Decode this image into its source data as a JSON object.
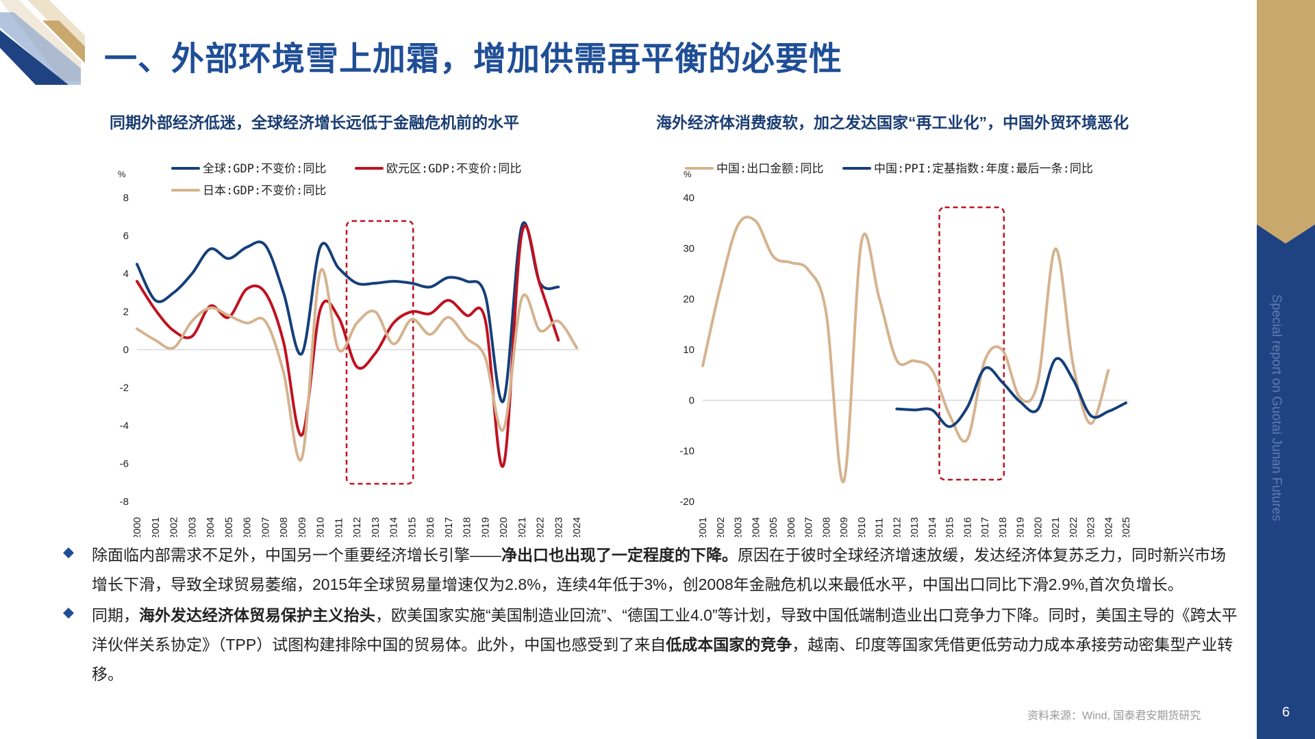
{
  "header": {
    "title": "一、外部环境雪上加霜，增加供需再平衡的必要性"
  },
  "sidebar": {
    "text": "Special report on Guotai Junan Futures",
    "page_number": "6"
  },
  "colors": {
    "navy": "#1f4382",
    "gold": "#c9a86e",
    "red": "#c0111f",
    "tan": "#d5b38f",
    "title_blue": "#1f4e96"
  },
  "left_panel": {
    "subtitle": "同期外部经济低迷，全球经济增长远低于金融危机前的水平"
  },
  "right_panel": {
    "subtitle": "海外经济体消费疲软，加之发达国家“再工业化”，中国外贸环境恶化"
  },
  "chart_data": [
    {
      "type": "line",
      "unit_label": "%",
      "x": [
        "2000",
        "2001",
        "2002",
        "2003",
        "2004",
        "2005",
        "2006",
        "2007",
        "2008",
        "2009",
        "2010",
        "2011",
        "2012",
        "2013",
        "2014",
        "2015",
        "2016",
        "2017",
        "2018",
        "2019",
        "2020",
        "2021",
        "2022",
        "2023",
        "2024"
      ],
      "ylim": [
        -8,
        8
      ],
      "yticks": [
        -8,
        -6,
        -4,
        -2,
        0,
        2,
        4,
        6,
        8
      ],
      "grid": false,
      "legend_position": "top",
      "highlight_box": [
        "2012",
        "2015"
      ],
      "series": [
        {
          "name": "全球:GDP:不变价:同比",
          "color": "#153f7a",
          "values": [
            4.5,
            2.6,
            3.0,
            4.0,
            5.3,
            4.8,
            5.4,
            5.5,
            3.0,
            -0.2,
            5.4,
            4.3,
            3.5,
            3.5,
            3.6,
            3.5,
            3.3,
            3.8,
            3.6,
            2.9,
            -2.7,
            6.5,
            3.5,
            3.3,
            null
          ]
        },
        {
          "name": "欧元区:GDP:不变价:同比",
          "color": "#c0111f",
          "values": [
            3.6,
            2.1,
            1.0,
            0.7,
            2.3,
            1.7,
            3.2,
            3.0,
            0.4,
            -4.5,
            2.1,
            1.7,
            -0.9,
            -0.2,
            1.4,
            2.0,
            1.9,
            2.6,
            1.8,
            1.6,
            -6.1,
            6.1,
            3.4,
            0.5,
            null
          ]
        },
        {
          "name": "日本:GDP:不变价:同比",
          "color": "#d5b38f",
          "values": [
            1.1,
            0.5,
            0.1,
            1.5,
            2.2,
            1.8,
            1.4,
            1.5,
            -1.2,
            -5.7,
            4.1,
            0.0,
            1.4,
            2.0,
            0.3,
            1.6,
            0.8,
            1.7,
            0.6,
            -0.4,
            -4.2,
            2.7,
            1.0,
            1.5,
            0.1
          ]
        }
      ]
    },
    {
      "type": "line",
      "unit_label": "%",
      "x": [
        "2001",
        "2002",
        "2003",
        "2004",
        "2005",
        "2006",
        "2007",
        "2008",
        "2009",
        "2010",
        "2011",
        "2012",
        "2013",
        "2014",
        "2015",
        "2016",
        "2017",
        "2018",
        "2019",
        "2020",
        "2021",
        "2022",
        "2023",
        "2024",
        "2025"
      ],
      "ylim": [
        -20,
        40
      ],
      "yticks": [
        -20,
        -10,
        0,
        10,
        20,
        30,
        40
      ],
      "grid": false,
      "legend_position": "top",
      "highlight_box": [
        "2015",
        "2018"
      ],
      "series": [
        {
          "name": "中国:出口金额:同比",
          "color": "#d5b38f",
          "values": [
            6.8,
            22.4,
            34.6,
            35.4,
            28.4,
            27.2,
            25.7,
            17.2,
            -16.0,
            31.3,
            20.3,
            7.9,
            7.8,
            6.0,
            -2.9,
            -7.7,
            7.9,
            9.9,
            0.5,
            3.6,
            29.9,
            7.0,
            -4.6,
            5.9,
            null
          ]
        },
        {
          "name": "中国:PPI:定基指数:年度:最后一条:同比",
          "color": "#153f7a",
          "values": [
            null,
            null,
            null,
            null,
            null,
            null,
            null,
            null,
            null,
            null,
            null,
            -1.7,
            -1.9,
            -1.9,
            -5.2,
            -1.4,
            6.3,
            3.5,
            -0.3,
            -1.8,
            8.1,
            4.1,
            -3.0,
            -2.2,
            -0.5
          ]
        }
      ]
    }
  ],
  "bullets": [
    {
      "parts": [
        {
          "text": "除面临内部需求不足外，中国另一个重要经济增长引擎——",
          "bold": false
        },
        {
          "text": "净出口也出现了一定程度的下降。",
          "bold": true
        },
        {
          "text": "原因在于彼时全球经济增速放缓，发达经济体复苏乏力，同时新兴市场增长下滑，导致全球贸易萎缩，2015年全球贸易量增速仅为2.8%，连续4年低于3%，创2008年金融危机以来最低水平，中国出口同比下滑2.9%,首次负增长。",
          "bold": false
        }
      ]
    },
    {
      "parts": [
        {
          "text": "同期，",
          "bold": false
        },
        {
          "text": "海外发达经济体贸易保护主义抬头",
          "bold": true
        },
        {
          "text": "，欧美国家实施“美国制造业回流”、“德国工业4.0”等计划，导致中国低端制造业出口竞争力下降。同时，美国主导的《跨太平洋伙伴关系协定》（TPP）试图构建排除中国的贸易体。此外，中国也感受到了来自",
          "bold": false
        },
        {
          "text": "低成本国家的竞争",
          "bold": true
        },
        {
          "text": "，越南、印度等国家凭借更低劳动力成本承接劳动密集型产业转移。",
          "bold": false
        }
      ]
    }
  ],
  "footer": {
    "source": "资料来源：Wind, 国泰君安期货研究"
  }
}
